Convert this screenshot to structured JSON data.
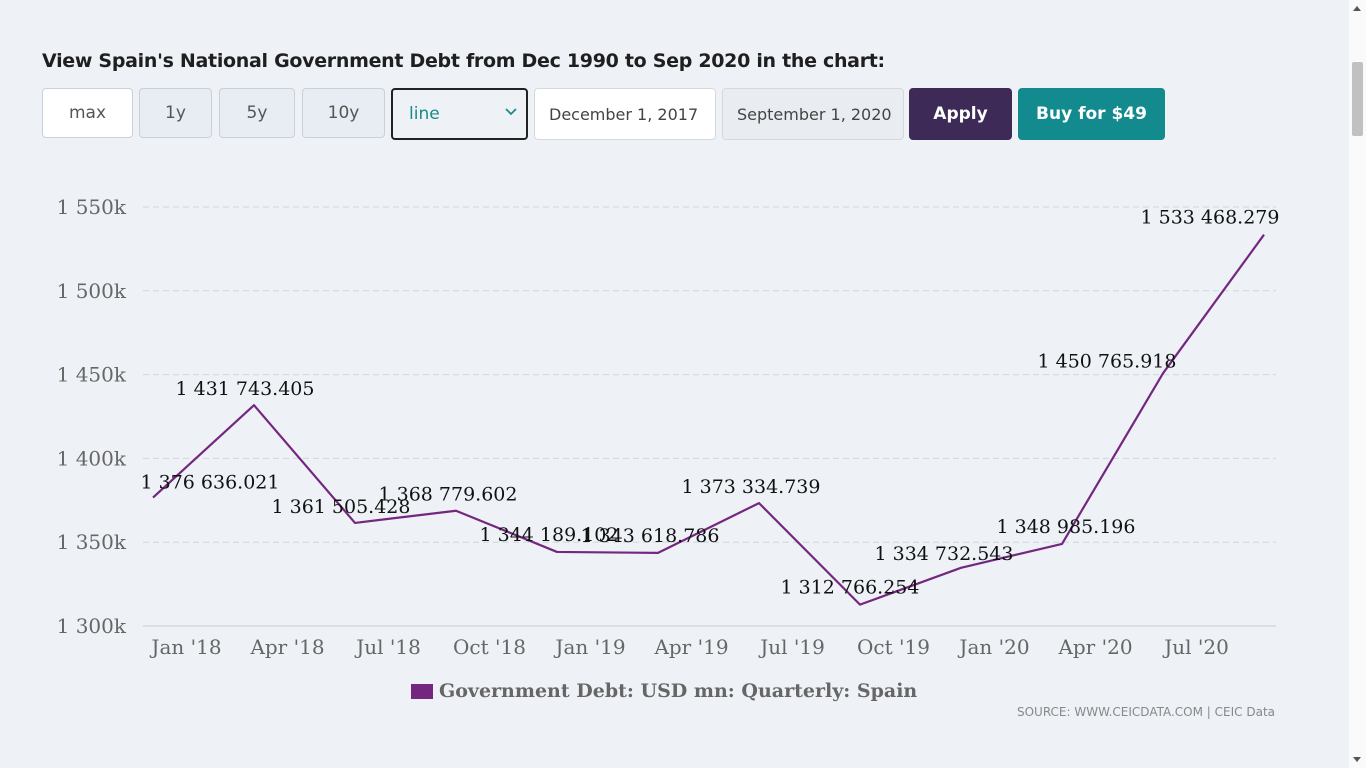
{
  "heading": "View Spain's National Government Debt from Dec 1990 to Sep 2020 in the chart:",
  "toolbar": {
    "ranges": [
      "max",
      "1y",
      "5y",
      "10y"
    ],
    "chart_type": "line",
    "start_date": "December 1, 2017",
    "end_date": "September 1, 2020",
    "apply_label": "Apply",
    "buy_label": "Buy for $49"
  },
  "chart_data": {
    "type": "line",
    "title": "",
    "xlabel": "",
    "ylabel": "",
    "ylim": [
      1300000,
      1550000
    ],
    "y_ticks": [
      1300000,
      1350000,
      1400000,
      1450000,
      1500000,
      1550000
    ],
    "y_tick_labels": [
      "1 300k",
      "1 350k",
      "1 400k",
      "1 450k",
      "1 500k",
      "1 550k"
    ],
    "x_tick_labels": [
      "Jan '18",
      "Apr '18",
      "Jul '18",
      "Oct '18",
      "Jan '19",
      "Apr '19",
      "Jul '19",
      "Oct '19",
      "Jan '20",
      "Apr '20",
      "Jul '20"
    ],
    "grid": true,
    "legend_position": "bottom",
    "x": [
      "2017-12",
      "2018-03",
      "2018-06",
      "2018-09",
      "2018-12",
      "2019-03",
      "2019-06",
      "2019-09",
      "2019-12",
      "2020-03",
      "2020-06",
      "2020-09"
    ],
    "series": [
      {
        "name": "Government Debt: USD mn: Quarterly: Spain",
        "color": "#74277f",
        "values": [
          1376636.021,
          1431743.405,
          1361505.428,
          1368779.602,
          1344189.102,
          1343618.786,
          1373334.739,
          1312766.254,
          1334732.543,
          1348985.196,
          1450765.918,
          1533468.279
        ],
        "labels": [
          "1 376 636.021",
          "1 431 743.405",
          "1 361 505.428",
          "1 368 779.602",
          "1 344 189.102",
          "1 343 618.786",
          "1 373 334.739",
          "1 312 766.254",
          "1 334 732.543",
          "1 348 985.196",
          "1 450 765.918",
          "1 533 468.279"
        ]
      }
    ]
  },
  "legend_label": "Government Debt: USD mn: Quarterly: Spain",
  "source": "SOURCE: WWW.CEICDATA.COM | CEIC Data"
}
